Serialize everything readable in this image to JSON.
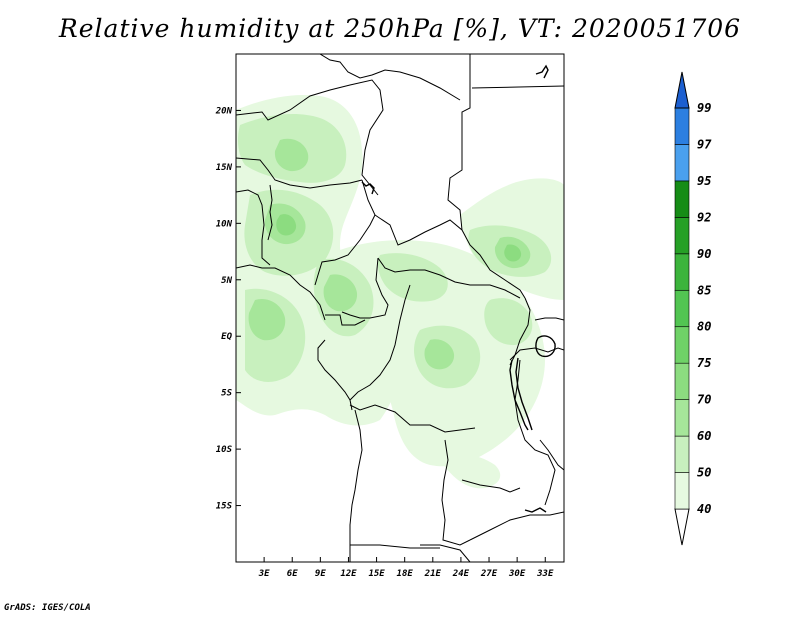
{
  "title": "Relative humidity at 250hPa [%], VT: 2020051706",
  "footer": "GrADS: IGES/COLA",
  "map": {
    "lat_range": [
      -20,
      25
    ],
    "lon_range": [
      0,
      35
    ],
    "lat_ticks": [
      {
        "value": 20,
        "label": "20N"
      },
      {
        "value": 15,
        "label": "15N"
      },
      {
        "value": 10,
        "label": "10N"
      },
      {
        "value": 5,
        "label": "5N"
      },
      {
        "value": 0,
        "label": "EQ"
      },
      {
        "value": -5,
        "label": "5S"
      },
      {
        "value": -10,
        "label": "10S"
      },
      {
        "value": -15,
        "label": "15S"
      }
    ],
    "lon_ticks": [
      {
        "value": 3,
        "label": "3E"
      },
      {
        "value": 6,
        "label": "6E"
      },
      {
        "value": 9,
        "label": "9E"
      },
      {
        "value": 12,
        "label": "12E"
      },
      {
        "value": 15,
        "label": "15E"
      },
      {
        "value": 18,
        "label": "18E"
      },
      {
        "value": 21,
        "label": "21E"
      },
      {
        "value": 24,
        "label": "24E"
      },
      {
        "value": 27,
        "label": "27E"
      },
      {
        "value": 30,
        "label": "30E"
      },
      {
        "value": 33,
        "label": "33E"
      }
    ]
  },
  "colorbar": {
    "levels": [
      "40",
      "50",
      "60",
      "70",
      "75",
      "80",
      "85",
      "90",
      "92",
      "95",
      "97",
      "99"
    ],
    "colors": [
      "#ffffff",
      "#e6f9e0",
      "#c8f0be",
      "#a6e69a",
      "#8cdc80",
      "#6fd267",
      "#52c552",
      "#3cb43c",
      "#26a026",
      "#168c16",
      "#4aa0ee",
      "#2c7fe0",
      "#1c5fd0"
    ]
  },
  "coastline_color": "#000000"
}
